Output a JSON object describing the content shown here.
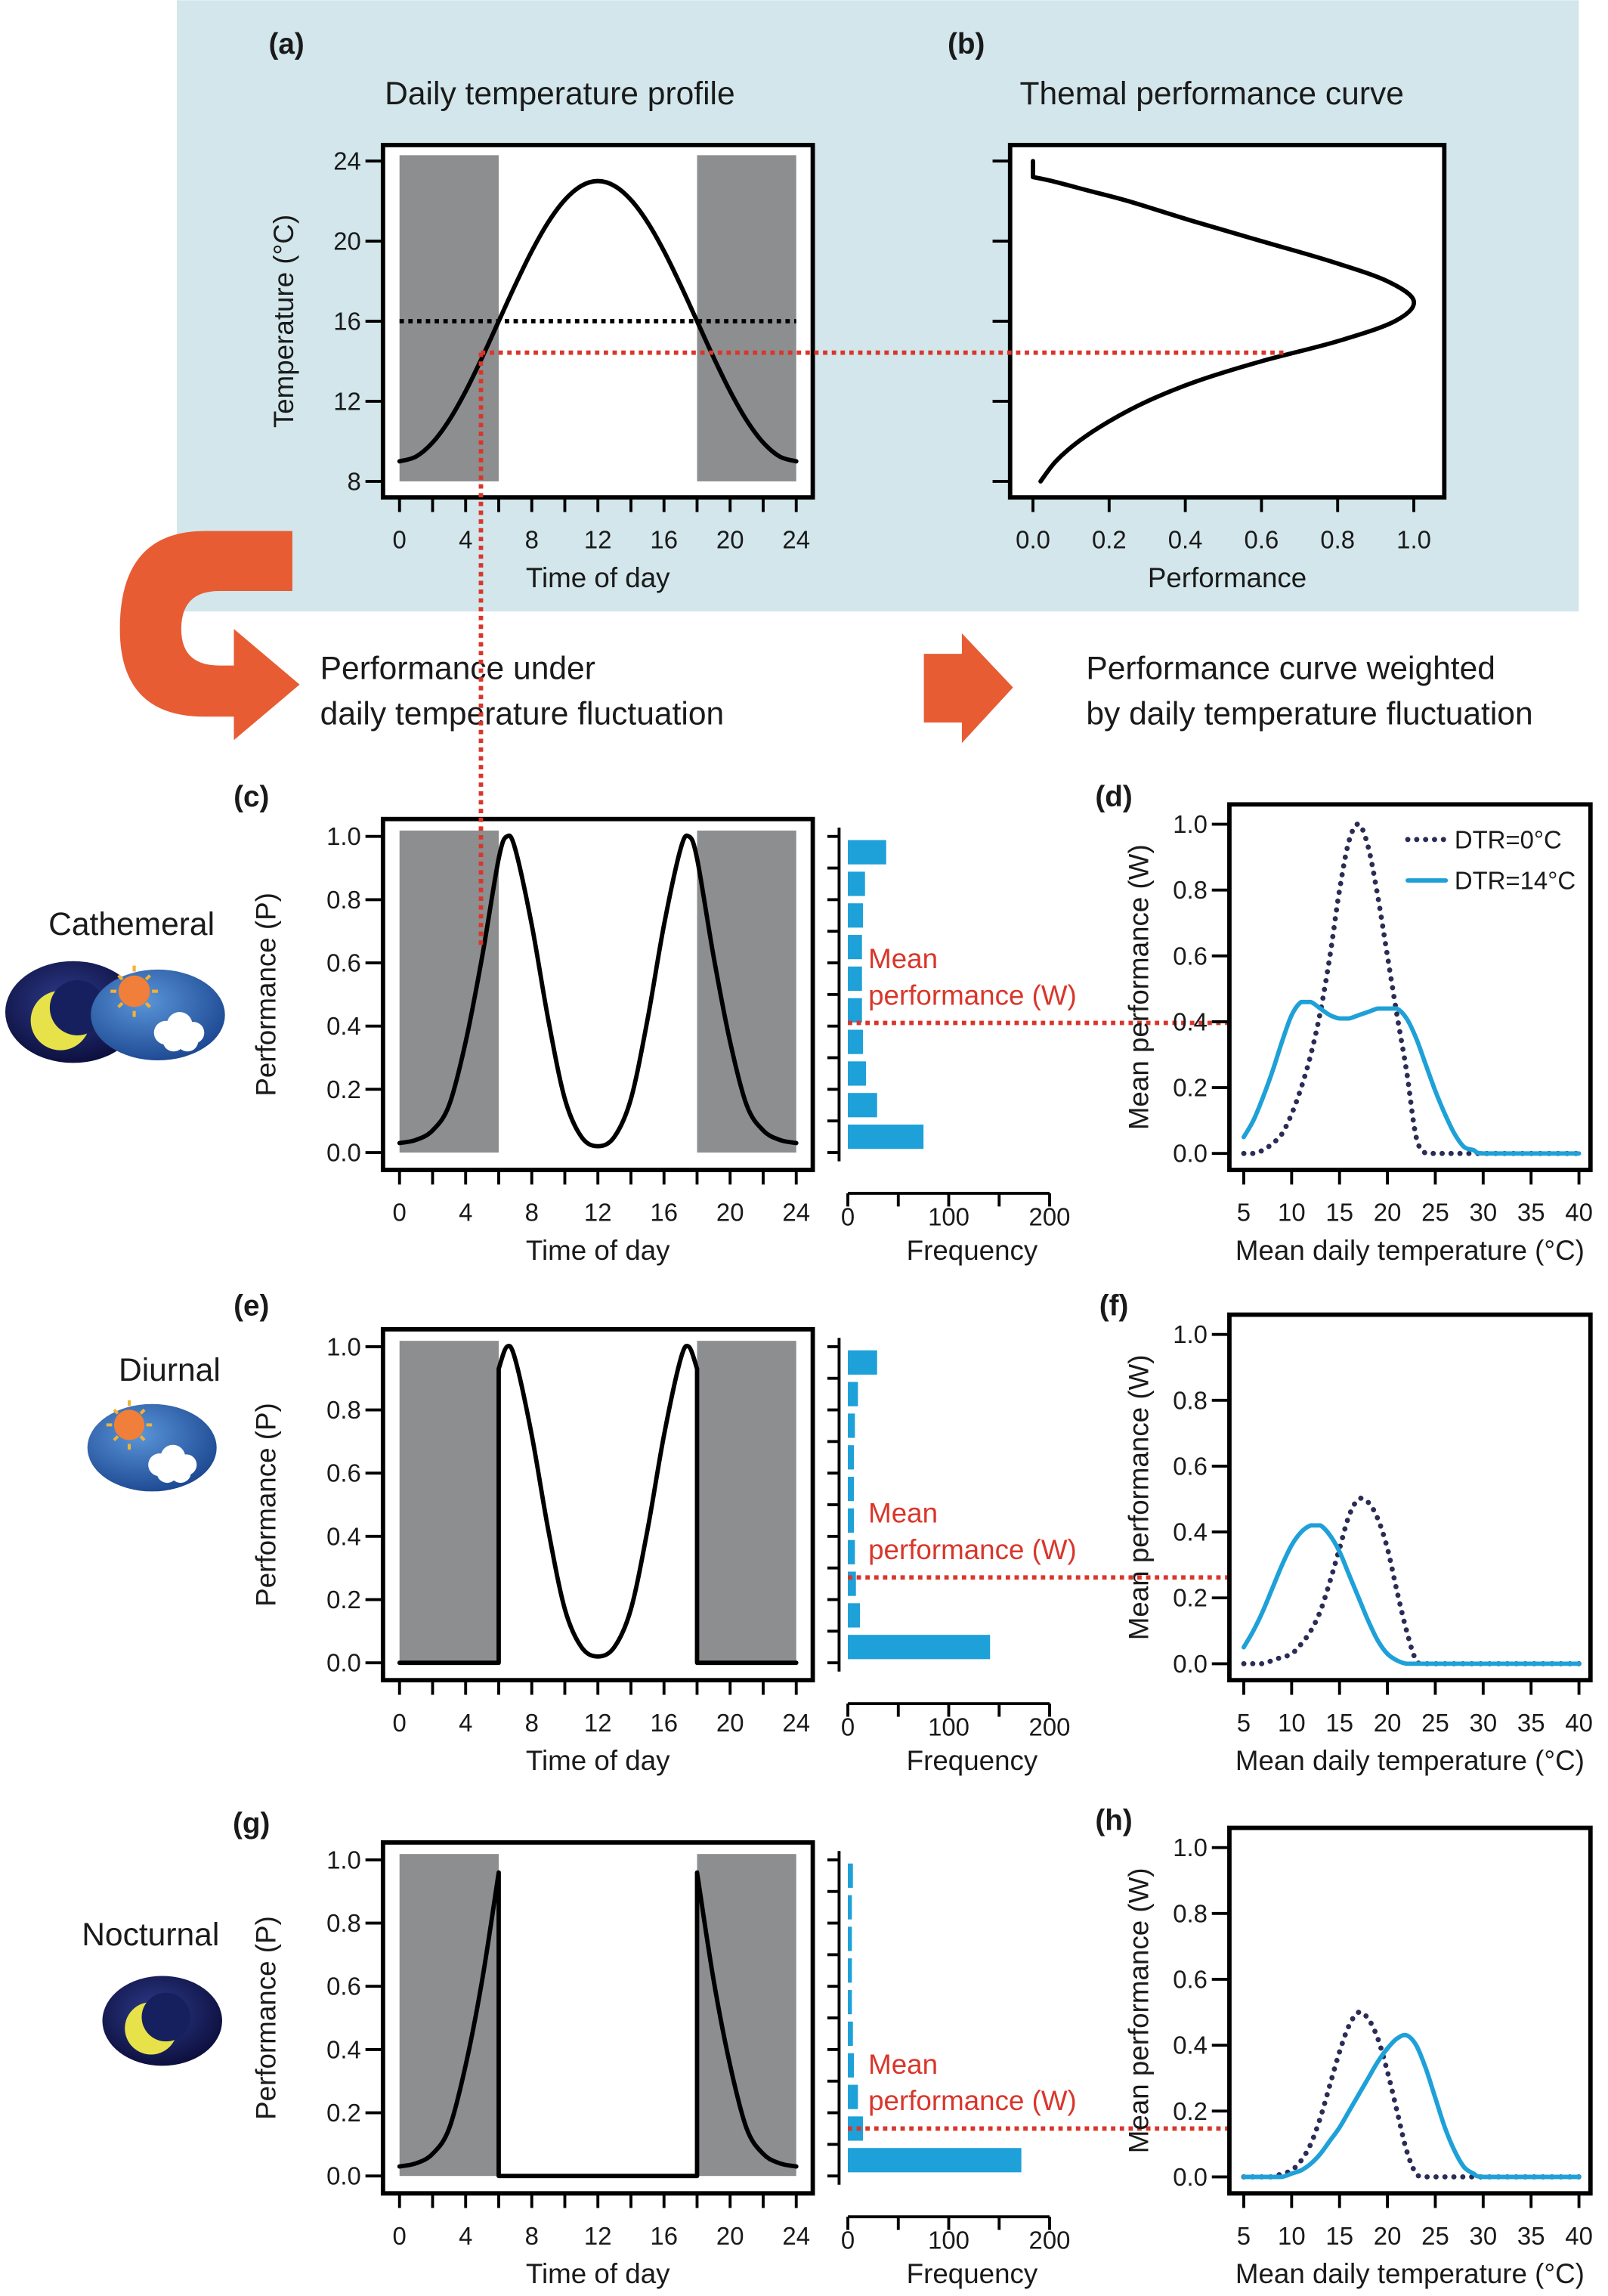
{
  "figure_text": {
    "arrow_left": [
      "Performance under",
      "daily temperature fluctuation"
    ],
    "arrow_right": [
      "Performance curve weighted",
      "by daily temperature fluctuation"
    ],
    "rows": [
      "Cathemeral",
      "Diurnal",
      "Nocturnal"
    ]
  },
  "chart_data": [
    {
      "type": "line",
      "panel": "(a)",
      "title": "Daily temperature profile",
      "xlabel": "Time of day",
      "ylabel": "Temperature (°C)",
      "x": [
        0,
        1,
        2,
        3,
        4,
        5,
        6,
        7,
        8,
        9,
        10,
        11,
        12,
        13,
        14,
        15,
        16,
        17,
        18,
        19,
        20,
        21,
        22,
        23,
        24
      ],
      "values": [
        9,
        9.24,
        9.94,
        11.05,
        12.5,
        14.19,
        16,
        17.81,
        19.5,
        20.95,
        22.06,
        22.76,
        23,
        22.76,
        22.06,
        20.95,
        19.5,
        17.81,
        16,
        14.19,
        12.5,
        11.05,
        9.94,
        9.24,
        9
      ],
      "color": "#000000",
      "xlim": [
        -1,
        25
      ],
      "ylim": [
        7.2,
        24.8
      ],
      "xticks": [
        0,
        4,
        8,
        12,
        16,
        20,
        24
      ],
      "xminorticks": [
        2,
        6,
        10,
        14,
        18,
        22
      ],
      "yticks": [
        8,
        12,
        16,
        20,
        24
      ],
      "shaded": [
        [
          0,
          6
        ],
        [
          18,
          24
        ]
      ],
      "hline": 16
    },
    {
      "type": "line",
      "panel": "(b)",
      "title": "Themal performance curve",
      "xlabel": "Performance",
      "y": [
        8,
        9,
        10,
        11,
        12,
        13,
        14,
        15,
        16,
        17,
        18,
        19,
        20,
        21,
        22,
        22.5,
        23,
        23.2,
        24
      ],
      "values": [
        0.02,
        0.06,
        0.12,
        0.2,
        0.3,
        0.43,
        0.6,
        0.8,
        0.95,
        1.0,
        0.93,
        0.78,
        0.6,
        0.42,
        0.25,
        0.15,
        0.05,
        0,
        0
      ],
      "color": "#000000",
      "xlim": [
        -0.06,
        1.08
      ],
      "ylim": [
        7.2,
        24.8
      ],
      "xticks": [
        {
          "value": 0,
          "label": "0.0"
        },
        0.2,
        0.4,
        0.6,
        0.8,
        {
          "value": 1,
          "label": "1.0"
        }
      ],
      "yticks": [
        8,
        12,
        16,
        20,
        24
      ],
      "ytick_labels": false
    },
    {
      "type": "line",
      "panel": "(c)",
      "xlabel": "Time of day",
      "ylabel": "Performance (P)",
      "x": [
        0,
        1,
        2,
        3,
        4,
        5,
        6,
        6.5,
        7,
        8,
        9,
        10,
        11,
        12,
        13,
        14,
        15,
        16,
        17,
        17.5,
        18,
        19,
        20,
        21,
        22,
        23,
        24
      ],
      "values": [
        0.03,
        0.04,
        0.07,
        0.15,
        0.35,
        0.62,
        0.93,
        1.0,
        0.96,
        0.72,
        0.42,
        0.17,
        0.05,
        0.02,
        0.05,
        0.17,
        0.42,
        0.72,
        0.96,
        1.0,
        0.93,
        0.62,
        0.35,
        0.15,
        0.07,
        0.04,
        0.03
      ],
      "color": "#000000",
      "xlim": [
        -1,
        25
      ],
      "ylim": [
        -0.055,
        1.055
      ],
      "xticks": [
        0,
        4,
        8,
        12,
        16,
        20,
        24
      ],
      "xminorticks": [
        2,
        6,
        10,
        14,
        18,
        22
      ],
      "yticks": [
        {
          "value": 0,
          "label": "0.0"
        },
        0.2,
        0.4,
        0.6,
        0.8,
        {
          "value": 1,
          "label": "1.0"
        }
      ],
      "shaded": [
        [
          0,
          6
        ],
        [
          18,
          24
        ]
      ]
    },
    {
      "type": "histogram",
      "xlabel": "Frequency",
      "bins": [
        0,
        0.1,
        0.2,
        0.3,
        0.4,
        0.5,
        0.6,
        0.7,
        0.8,
        0.9,
        1.0
      ],
      "values": [
        75,
        29,
        18,
        15,
        14,
        14,
        14,
        15,
        17,
        38
      ],
      "color": "#1ea0d8",
      "xlim": [
        0,
        200
      ],
      "ylim": [
        -0.055,
        1.055
      ],
      "xticks": [
        0,
        100,
        200
      ],
      "xminorticks": [
        50,
        150
      ],
      "mean": 0.41,
      "annotation": [
        "Mean",
        "performance (W)"
      ]
    },
    {
      "type": "line",
      "panel": "(d)",
      "xlabel": "Mean daily temperature (°C)",
      "ylabel": "Mean performance (W)",
      "x": [
        5,
        6,
        7,
        8,
        9,
        10,
        11,
        12,
        13,
        14,
        15,
        16,
        17,
        18,
        19,
        20,
        21,
        22,
        23,
        24,
        25,
        26,
        27,
        28,
        29,
        30,
        35,
        40
      ],
      "series": [
        {
          "name": "DTR=0°C",
          "color": "#2a2c55",
          "dotted": true,
          "values": [
            0,
            0,
            0.01,
            0.03,
            0.06,
            0.12,
            0.2,
            0.3,
            0.43,
            0.6,
            0.8,
            0.95,
            1.0,
            0.93,
            0.78,
            0.6,
            0.42,
            0.25,
            0.05,
            0,
            0,
            0,
            0,
            0,
            0,
            0,
            0,
            0
          ]
        },
        {
          "name": "DTR=14°C",
          "color": "#1ea0d8",
          "values": [
            0.05,
            0.1,
            0.17,
            0.25,
            0.34,
            0.42,
            0.46,
            0.46,
            0.44,
            0.42,
            0.41,
            0.41,
            0.42,
            0.43,
            0.44,
            0.44,
            0.44,
            0.41,
            0.35,
            0.27,
            0.19,
            0.12,
            0.06,
            0.02,
            0.01,
            0,
            0,
            0
          ]
        }
      ],
      "xlim": [
        3.5,
        41.2
      ],
      "ylim": [
        -0.05,
        1.06
      ],
      "xticks": [
        5,
        10,
        15,
        20,
        25,
        30,
        35,
        40
      ],
      "yticks": [
        {
          "value": 0,
          "label": "0.0"
        },
        0.2,
        0.4,
        0.6,
        0.8,
        {
          "value": 1,
          "label": "1.0"
        }
      ],
      "legend": "upper right"
    },
    {
      "type": "line",
      "panel": "(e)",
      "xlabel": "Time of day",
      "ylabel": "Performance (P)",
      "x": [
        0,
        6,
        6,
        6.5,
        7,
        8,
        9,
        10,
        11,
        12,
        13,
        14,
        15,
        16,
        17,
        17.5,
        18,
        18,
        24
      ],
      "values": [
        0,
        0,
        0.93,
        1.0,
        0.96,
        0.72,
        0.42,
        0.17,
        0.05,
        0.02,
        0.05,
        0.17,
        0.42,
        0.72,
        0.96,
        1.0,
        0.93,
        0,
        0
      ],
      "color": "#000000",
      "xlim": [
        -1,
        25
      ],
      "ylim": [
        -0.055,
        1.055
      ],
      "xticks": [
        0,
        4,
        8,
        12,
        16,
        20,
        24
      ],
      "xminorticks": [
        2,
        6,
        10,
        14,
        18,
        22
      ],
      "yticks": [
        {
          "value": 0,
          "label": "0.0"
        },
        0.2,
        0.4,
        0.6,
        0.8,
        {
          "value": 1,
          "label": "1.0"
        }
      ],
      "shaded": [
        [
          0,
          6
        ],
        [
          18,
          24
        ]
      ]
    },
    {
      "type": "histogram",
      "xlabel": "Frequency",
      "bins": [
        0,
        0.1,
        0.2,
        0.3,
        0.4,
        0.5,
        0.6,
        0.7,
        0.8,
        0.9,
        1.0
      ],
      "values": [
        141,
        12,
        8,
        7,
        6,
        6,
        6,
        7,
        10,
        29
      ],
      "color": "#1ea0d8",
      "xlim": [
        0,
        200
      ],
      "ylim": [
        -0.055,
        1.055
      ],
      "xticks": [
        0,
        100,
        200
      ],
      "xminorticks": [
        50,
        150
      ],
      "mean": 0.27,
      "annotation": [
        "Mean",
        "performance (W)"
      ]
    },
    {
      "type": "line",
      "panel": "(f)",
      "xlabel": "Mean daily temperature (°C)",
      "ylabel": "Mean performance (W)",
      "x": [
        5,
        6,
        7,
        8,
        9,
        10,
        11,
        12,
        13,
        14,
        15,
        16,
        17,
        18,
        19,
        20,
        21,
        22,
        23,
        24,
        25,
        26,
        27,
        28,
        29,
        30,
        35,
        40
      ],
      "series": [
        {
          "color": "#2a2c55",
          "dotted": true,
          "values": [
            0,
            0,
            0,
            0.01,
            0.02,
            0.03,
            0.06,
            0.1,
            0.16,
            0.25,
            0.35,
            0.45,
            0.5,
            0.49,
            0.44,
            0.35,
            0.22,
            0.1,
            0.01,
            0,
            0,
            0,
            0,
            0,
            0,
            0,
            0,
            0
          ]
        },
        {
          "color": "#1ea0d8",
          "values": [
            0.05,
            0.1,
            0.16,
            0.23,
            0.3,
            0.36,
            0.4,
            0.42,
            0.42,
            0.39,
            0.34,
            0.27,
            0.2,
            0.13,
            0.07,
            0.03,
            0.01,
            0,
            0,
            0,
            0,
            0,
            0,
            0,
            0,
            0,
            0,
            0
          ]
        }
      ],
      "xlim": [
        3.5,
        41.2
      ],
      "ylim": [
        -0.05,
        1.06
      ],
      "xticks": [
        5,
        10,
        15,
        20,
        25,
        30,
        35,
        40
      ],
      "yticks": [
        {
          "value": 0,
          "label": "0.0"
        },
        0.2,
        0.4,
        0.6,
        0.8,
        {
          "value": 1,
          "label": "1.0"
        }
      ]
    },
    {
      "type": "line",
      "panel": "(g)",
      "xlabel": "Time of day",
      "ylabel": "Performance (P)",
      "x": [
        0,
        1,
        2,
        3,
        4,
        5,
        6,
        6,
        18,
        18,
        19,
        20,
        21,
        22,
        23,
        24
      ],
      "values": [
        0.03,
        0.04,
        0.07,
        0.15,
        0.35,
        0.62,
        0.96,
        0,
        0,
        0.96,
        0.62,
        0.35,
        0.15,
        0.07,
        0.04,
        0.03
      ],
      "color": "#000000",
      "xlim": [
        -1,
        25
      ],
      "ylim": [
        -0.055,
        1.055
      ],
      "xticks": [
        0,
        4,
        8,
        12,
        16,
        20,
        24
      ],
      "xminorticks": [
        2,
        6,
        10,
        14,
        18,
        22
      ],
      "yticks": [
        {
          "value": 0,
          "label": "0.0"
        },
        0.2,
        0.4,
        0.6,
        0.8,
        {
          "value": 1,
          "label": "1.0"
        }
      ],
      "shaded": [
        [
          0,
          6
        ],
        [
          18,
          24
        ]
      ]
    },
    {
      "type": "histogram",
      "xlabel": "Frequency",
      "bins": [
        0,
        0.1,
        0.2,
        0.3,
        0.4,
        0.5,
        0.6,
        0.7,
        0.8,
        0.9,
        1.0
      ],
      "values": [
        172,
        15,
        10,
        6,
        5,
        4,
        4,
        4,
        4,
        5
      ],
      "color": "#1ea0d8",
      "xlim": [
        0,
        200
      ],
      "ylim": [
        -0.055,
        1.055
      ],
      "xticks": [
        0,
        100,
        200
      ],
      "xminorticks": [
        50,
        150
      ],
      "mean": 0.15,
      "annotation": [
        "Mean",
        "performance (W)"
      ]
    },
    {
      "type": "line",
      "panel": "(h)",
      "xlabel": "Mean daily temperature (°C)",
      "ylabel": "Mean performance (W)",
      "x": [
        5,
        6,
        7,
        8,
        9,
        10,
        11,
        12,
        13,
        14,
        15,
        16,
        17,
        18,
        19,
        20,
        21,
        22,
        23,
        24,
        25,
        26,
        27,
        28,
        29,
        30,
        35,
        40
      ],
      "series": [
        {
          "color": "#2a2c55",
          "dotted": true,
          "values": [
            0,
            0,
            0,
            0,
            0.01,
            0.02,
            0.05,
            0.1,
            0.18,
            0.28,
            0.38,
            0.46,
            0.5,
            0.48,
            0.42,
            0.32,
            0.2,
            0.08,
            0.01,
            0,
            0,
            0,
            0,
            0,
            0,
            0,
            0,
            0
          ]
        },
        {
          "color": "#1ea0d8",
          "values": [
            0,
            0,
            0,
            0,
            0,
            0.01,
            0.02,
            0.04,
            0.07,
            0.11,
            0.15,
            0.2,
            0.25,
            0.3,
            0.35,
            0.39,
            0.42,
            0.43,
            0.4,
            0.33,
            0.24,
            0.15,
            0.08,
            0.03,
            0.01,
            0,
            0,
            0
          ]
        }
      ],
      "xlim": [
        3.5,
        41.2
      ],
      "ylim": [
        -0.05,
        1.06
      ],
      "xticks": [
        5,
        10,
        15,
        20,
        25,
        30,
        35,
        40
      ],
      "yticks": [
        {
          "value": 0,
          "label": "0.0"
        },
        0.2,
        0.4,
        0.6,
        0.8,
        {
          "value": 1,
          "label": "1.0"
        }
      ]
    }
  ]
}
